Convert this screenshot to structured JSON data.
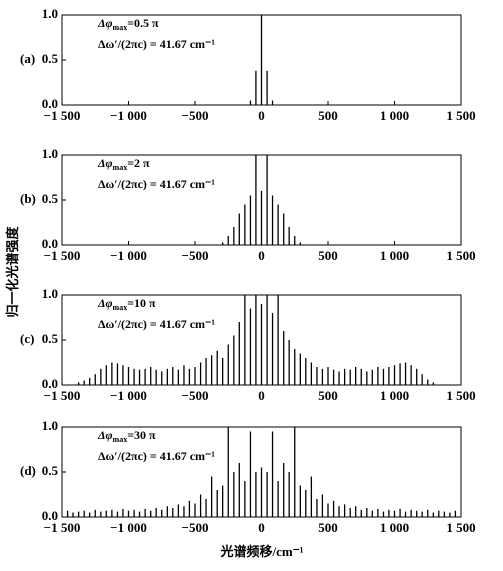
{
  "figure_labels": {
    "xlabel": "光谱频移/cm⁻¹",
    "ylabel": "归一化光谱强度"
  },
  "chart_data": [
    {
      "type": "stem",
      "panel": "(a)",
      "color": "#000000",
      "annotation": {
        "symbol": "Δφ",
        "sub": "max",
        "rest": "=0.5 π",
        "line2": "Δω′/(2πc) = 41.67 cm⁻¹"
      },
      "x": [
        -83,
        -42,
        0,
        42,
        83
      ],
      "values": [
        0.05,
        0.38,
        1.0,
        0.38,
        0.05
      ],
      "xlim": [
        -1500,
        1500
      ],
      "ylim": [
        0,
        1.0
      ],
      "xticks": [
        {
          "value": -1500,
          "label": "−1 500"
        },
        {
          "value": -1000,
          "label": "−1 000"
        },
        {
          "value": -500,
          "label": "−500"
        },
        0,
        500,
        {
          "value": 1000,
          "label": "1 000"
        },
        {
          "value": 1500,
          "label": "1 500"
        }
      ],
      "yticks": [
        {
          "value": 0,
          "label": "0.0"
        },
        0.5,
        {
          "value": 1,
          "label": "1.0"
        }
      ]
    },
    {
      "type": "stem",
      "panel": "(b)",
      "color": "#000000",
      "annotation": {
        "symbol": "Δφ",
        "sub": "max",
        "rest": "=2 π",
        "line2": "Δω′/(2πc) = 41.67 cm⁻¹"
      },
      "x": [
        -292,
        -250,
        -208,
        -167,
        -125,
        -83,
        -42,
        0,
        42,
        83,
        125,
        167,
        208,
        250,
        292
      ],
      "values": [
        0.03,
        0.1,
        0.2,
        0.35,
        0.45,
        0.55,
        1.0,
        0.6,
        1.0,
        0.55,
        0.45,
        0.35,
        0.2,
        0.1,
        0.03
      ],
      "xlim": [
        -1500,
        1500
      ],
      "ylim": [
        0,
        1.0
      ],
      "xticks": [
        {
          "value": -1500,
          "label": "−1 500"
        },
        {
          "value": -1000,
          "label": "−1 000"
        },
        {
          "value": -500,
          "label": "−500"
        },
        0,
        500,
        {
          "value": 1000,
          "label": "1 000"
        },
        {
          "value": 1500,
          "label": "1 500"
        }
      ],
      "yticks": [
        {
          "value": 0,
          "label": "0.0"
        },
        0.5,
        {
          "value": 1,
          "label": "1.0"
        }
      ]
    },
    {
      "type": "stem",
      "panel": "(c)",
      "color": "#000000",
      "annotation": {
        "symbol": "Δφ",
        "sub": "max",
        "rest": "=10 π",
        "line2": "Δω′/(2πc) = 41.67 cm⁻¹"
      },
      "x": [
        -1375,
        -1333,
        -1292,
        -1250,
        -1208,
        -1167,
        -1125,
        -1083,
        -1042,
        -1000,
        -958,
        -917,
        -875,
        -833,
        -792,
        -750,
        -708,
        -667,
        -625,
        -583,
        -542,
        -500,
        -458,
        -417,
        -375,
        -333,
        -292,
        -250,
        -208,
        -167,
        -125,
        -83,
        -42,
        0,
        42,
        83,
        125,
        167,
        208,
        250,
        292,
        333,
        375,
        417,
        458,
        500,
        542,
        583,
        625,
        667,
        708,
        750,
        792,
        833,
        875,
        917,
        958,
        1000,
        1042,
        1083,
        1125,
        1167,
        1208,
        1250,
        1292
      ],
      "values": [
        0.03,
        0.05,
        0.08,
        0.12,
        0.18,
        0.22,
        0.25,
        0.24,
        0.22,
        0.2,
        0.18,
        0.17,
        0.18,
        0.2,
        0.17,
        0.15,
        0.18,
        0.2,
        0.17,
        0.22,
        0.18,
        0.2,
        0.25,
        0.3,
        0.33,
        0.38,
        0.3,
        0.45,
        0.55,
        0.7,
        1.0,
        0.85,
        1.0,
        0.9,
        1.0,
        0.8,
        1.0,
        0.6,
        0.5,
        0.4,
        0.35,
        0.3,
        0.25,
        0.2,
        0.18,
        0.2,
        0.17,
        0.15,
        0.18,
        0.17,
        0.2,
        0.18,
        0.15,
        0.17,
        0.2,
        0.18,
        0.2,
        0.22,
        0.24,
        0.25,
        0.22,
        0.18,
        0.12,
        0.06,
        0.03
      ],
      "xlim": [
        -1500,
        1500
      ],
      "ylim": [
        0,
        1.0
      ],
      "xticks": [
        {
          "value": -1500,
          "label": "−1 500"
        },
        {
          "value": -1000,
          "label": "−1 000"
        },
        {
          "value": -500,
          "label": "−500"
        },
        0,
        500,
        {
          "value": 1000,
          "label": "1 000"
        },
        {
          "value": 1500,
          "label": "1 500"
        }
      ],
      "yticks": [
        {
          "value": 0,
          "label": "0.0"
        },
        0.5,
        {
          "value": 1,
          "label": "1.0"
        }
      ]
    },
    {
      "type": "stem",
      "panel": "(d)",
      "color": "#000000",
      "annotation": {
        "symbol": "Δφ",
        "sub": "max",
        "rest": "=30 π",
        "line2": "Δω′/(2πc) = 41.67 cm⁻¹"
      },
      "x": [
        -1458,
        -1417,
        -1375,
        -1333,
        -1292,
        -1250,
        -1208,
        -1167,
        -1125,
        -1083,
        -1042,
        -1000,
        -958,
        -917,
        -875,
        -833,
        -792,
        -750,
        -708,
        -667,
        -625,
        -583,
        -542,
        -500,
        -458,
        -417,
        -375,
        -333,
        -292,
        -250,
        -208,
        -167,
        -125,
        -83,
        -42,
        0,
        42,
        83,
        125,
        167,
        208,
        250,
        292,
        333,
        375,
        417,
        458,
        500,
        542,
        583,
        625,
        667,
        708,
        750,
        792,
        833,
        875,
        917,
        958,
        1000,
        1042,
        1083,
        1125,
        1167,
        1208,
        1250,
        1292,
        1333,
        1375,
        1417,
        1458
      ],
      "values": [
        0.07,
        0.05,
        0.06,
        0.07,
        0.05,
        0.08,
        0.06,
        0.07,
        0.08,
        0.06,
        0.09,
        0.07,
        0.08,
        0.06,
        0.09,
        0.07,
        0.1,
        0.08,
        0.12,
        0.1,
        0.14,
        0.12,
        0.18,
        0.15,
        0.25,
        0.2,
        0.45,
        0.3,
        0.35,
        1.0,
        0.5,
        0.6,
        0.4,
        0.95,
        0.5,
        0.55,
        0.5,
        0.95,
        0.4,
        0.6,
        0.5,
        1.0,
        0.35,
        0.3,
        0.45,
        0.2,
        0.25,
        0.15,
        0.18,
        0.12,
        0.14,
        0.1,
        0.12,
        0.08,
        0.1,
        0.07,
        0.09,
        0.06,
        0.08,
        0.07,
        0.09,
        0.06,
        0.08,
        0.07,
        0.06,
        0.08,
        0.05,
        0.07,
        0.06,
        0.05,
        0.07
      ],
      "xlim": [
        -1500,
        1500
      ],
      "ylim": [
        0,
        1.0
      ],
      "xticks": [
        {
          "value": -1500,
          "label": "−1 500"
        },
        {
          "value": -1000,
          "label": "−1 000"
        },
        {
          "value": -500,
          "label": "−500"
        },
        0,
        500,
        {
          "value": 1000,
          "label": "1 000"
        },
        {
          "value": 1500,
          "label": "1 500"
        }
      ],
      "yticks": [
        {
          "value": 0,
          "label": "0.0"
        },
        0.5,
        {
          "value": 1,
          "label": "1.0"
        }
      ]
    }
  ]
}
